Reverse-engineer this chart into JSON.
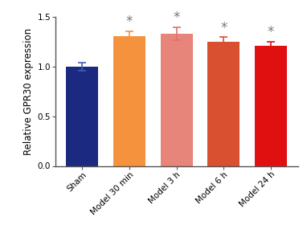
{
  "categories": [
    "Sham",
    "Model 30 min",
    "Model 3 h",
    "Model 6 h",
    "Model 24 h"
  ],
  "values": [
    1.0,
    1.3,
    1.33,
    1.25,
    1.21
  ],
  "errors": [
    0.04,
    0.055,
    0.065,
    0.045,
    0.04
  ],
  "bar_colors": [
    "#1b2a80",
    "#f5923e",
    "#e8857a",
    "#d95030",
    "#e01010"
  ],
  "error_colors": [
    "#4060b0",
    "#f5923e",
    "#e07070",
    "#d95030",
    "#e01010"
  ],
  "ylabel": "Relative GPR30 expression",
  "ylim": [
    0.0,
    1.5
  ],
  "yticks": [
    0.0,
    0.5,
    1.0,
    1.5
  ],
  "show_asterisk": [
    false,
    true,
    true,
    true,
    true
  ],
  "asterisk_color": "#777777",
  "background_color": "#ffffff",
  "bar_width": 0.68,
  "tick_label_fontsize": 7.5,
  "ylabel_fontsize": 8.5,
  "asterisk_fontsize": 12
}
